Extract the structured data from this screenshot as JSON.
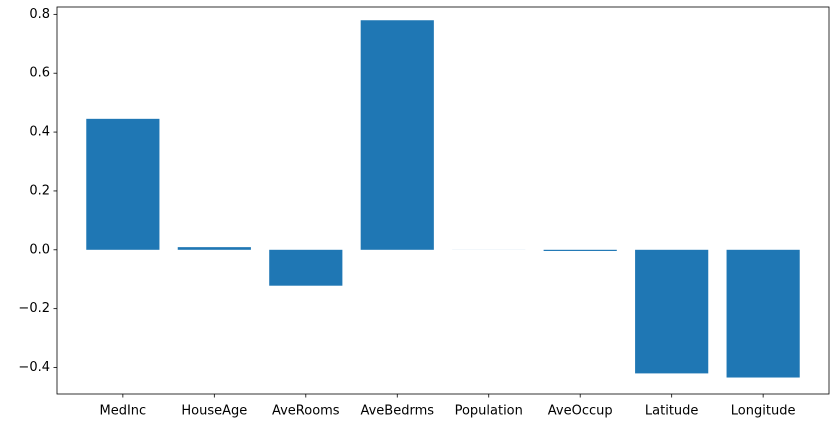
{
  "chart_data": {
    "type": "bar",
    "categories": [
      "MedInc",
      "HouseAge",
      "AveRooms",
      "AveBedrms",
      "Population",
      "AveOccup",
      "Latitude",
      "Longitude"
    ],
    "values": [
      0.445,
      0.009,
      -0.122,
      0.78,
      -0.0002,
      -0.004,
      -0.42,
      -0.434
    ],
    "title": "",
    "xlabel": "",
    "ylabel": "",
    "ylim": [
      -0.49,
      0.825
    ],
    "yticks": [
      -0.4,
      -0.2,
      0.0,
      0.2,
      0.4,
      0.6,
      0.8
    ],
    "ytick_labels": [
      "−0.4",
      "−0.2",
      "0.0",
      "0.2",
      "0.4",
      "0.6",
      "0.8"
    ],
    "grid": false,
    "legend": "none",
    "bar_color": "#1f77b4"
  }
}
